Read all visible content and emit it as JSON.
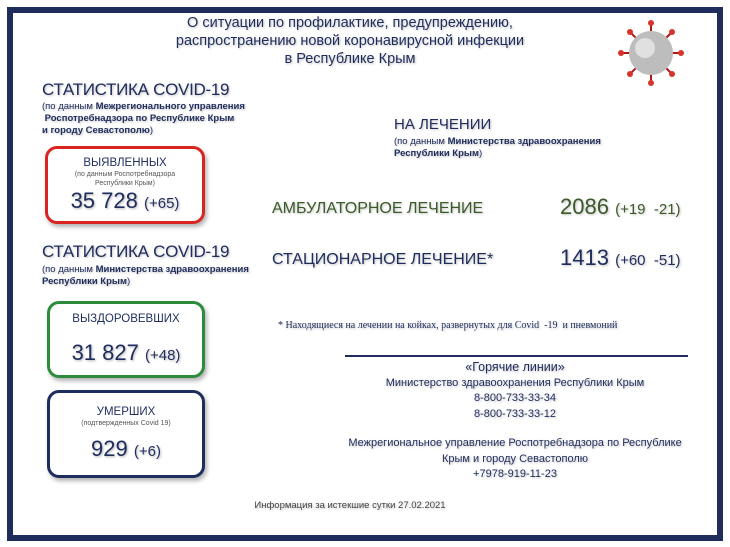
{
  "header": {
    "title_lines": [
      "О ситуации по профилактике, предупреждению,",
      "распространению новой коронавирусной инфекции",
      "в Республике Крым"
    ],
    "image": "coronavirus-illustration"
  },
  "left": {
    "stat1": {
      "heading": "СТАТИСТИКА COVID-19",
      "source_prefix": "(по данным ",
      "source_bold1": "Межрегионального управления",
      "source_bold2": "Роспотребнадзора по Республике Крым",
      "source_bold3": "и городу Севастополю",
      ")": ")"
    },
    "detected": {
      "label": "ВЫЯВЛЕННЫХ",
      "note1": "(по данным Роспотребнадзора",
      "note2": "Республики Крым)",
      "value": "35 728",
      "delta": "(+65)",
      "color": "#d9241f"
    },
    "stat2": {
      "heading": "СТАТИСТИКА COVID-19",
      "source_prefix": "(по данным ",
      "source_bold1": "Министерства здравоохранения",
      "source_bold2": "Республики Крым"
    },
    "recovered": {
      "label": "ВЫЗДОРОВЕВШИХ",
      "value": "31 827",
      "delta": "(+48)",
      "color": "#2e8b3e"
    },
    "deaths": {
      "label": "УМЕРШИХ",
      "note": "(подтвержденных Covid 19)",
      "value": "929",
      "delta": "(+6)",
      "color": "#1f2d5c"
    }
  },
  "right": {
    "heading": "НА ЛЕЧЕНИИ",
    "source_prefix": "(по данным ",
    "source_bold1": "Министерства здравоохранения",
    "source_bold2": "Республики Крым",
    "ambulatory": {
      "label": "АМБУЛАТОРНОЕ ЛЕЧЕНИЕ",
      "value": "2086",
      "delta": "(+19  -21)",
      "color": "#3b5a2a"
    },
    "inpatient": {
      "label": "СТАЦИОНАРНОЕ ЛЕЧЕНИЕ*",
      "value": "1413",
      "delta": "(+60  -51)"
    },
    "footnote": "* Находящиеся на лечении на койках, развернутых для Covid  -19  и пневмоний"
  },
  "hotlines": {
    "title": "«Горячие линии»",
    "ministry": "Министерство здравоохранения Республики Крым",
    "phone1": "8-800-733-33-34",
    "phone2": "8-800-733-33-12",
    "rpn_line1": "Межрегиональное управление Роспотребнадзора по Республике",
    "rpn_line2": "Крым и городу Севастополю",
    "phone3": "+7978-919-11-23"
  },
  "footer": "Информация за истекшие сутки 27.02.2021"
}
